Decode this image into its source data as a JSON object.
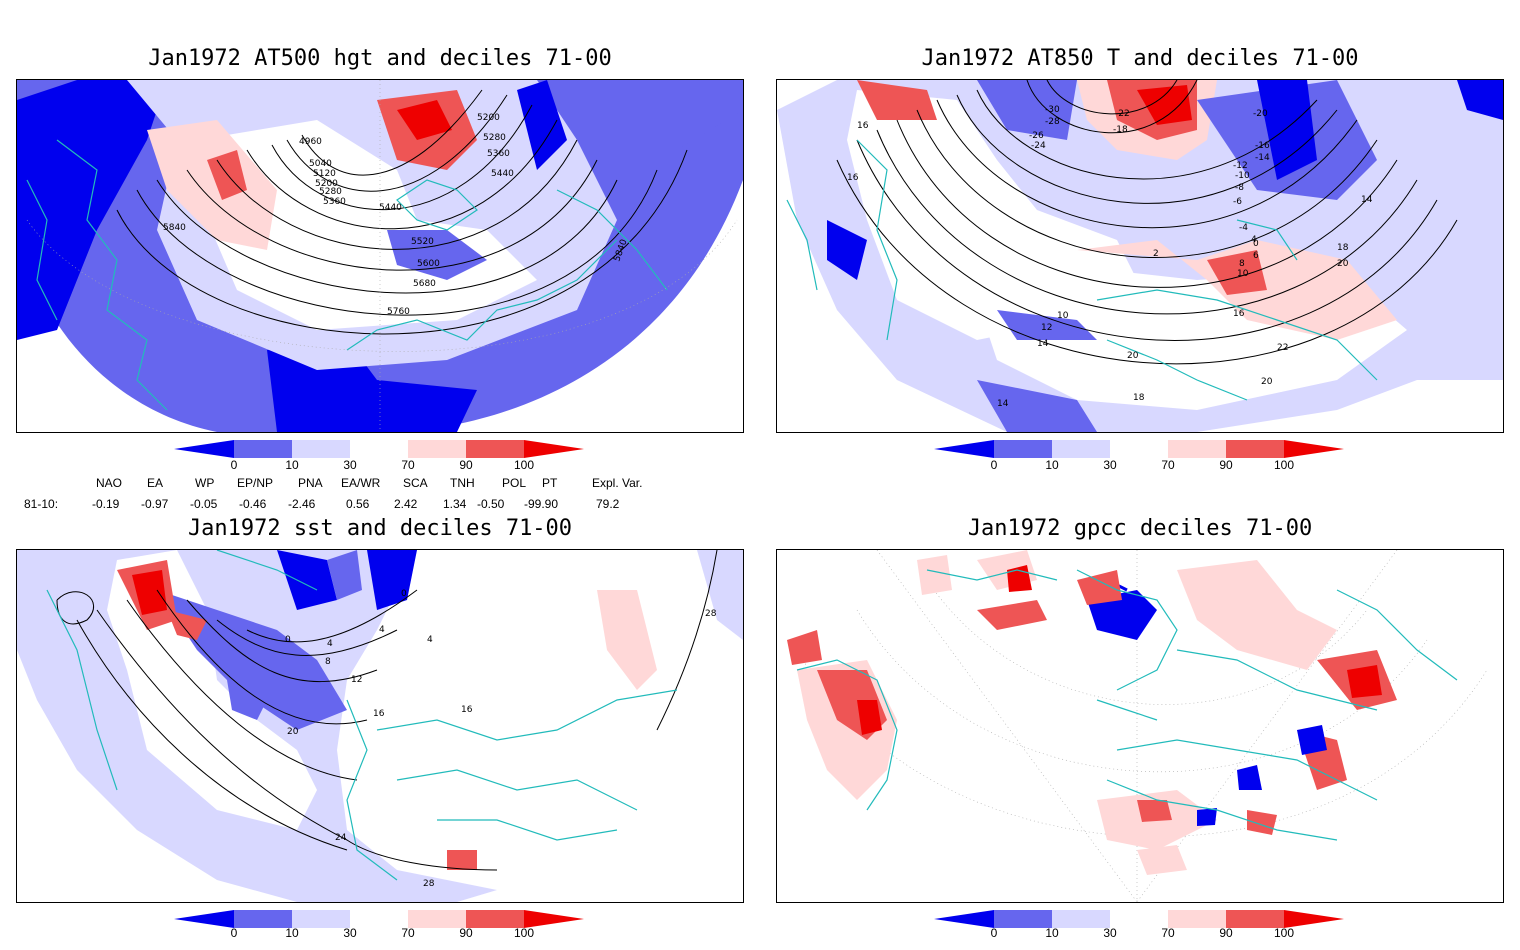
{
  "panels": [
    {
      "title": "Jan1972 AT500 hgt and deciles 71-00",
      "contour_labels": [
        "4960",
        "5040",
        "5120",
        "5200",
        "5280",
        "5360",
        "5200",
        "5280",
        "5360",
        "5440",
        "5440",
        "5520",
        "5600",
        "5680",
        "5760",
        "5840",
        "5840"
      ]
    },
    {
      "title": "Jan1972 AT850 T and deciles 71-00",
      "contour_labels": [
        "-30",
        "-28",
        "-26",
        "-24",
        "-22",
        "-20",
        "-18",
        "-16",
        "-14",
        "-12",
        "-10",
        "-8",
        "-6",
        "-4",
        "2",
        "0",
        "4",
        "6",
        "8",
        "10",
        "10",
        "12",
        "14",
        "14",
        "16",
        "16",
        "16",
        "18",
        "20",
        "20",
        "22",
        "20",
        "18",
        "14"
      ]
    },
    {
      "title": "Jan1972 sst and deciles 71-00",
      "contour_labels": [
        "0",
        "4",
        "8",
        "12",
        "16",
        "20",
        "24",
        "28",
        "28",
        "0",
        "4",
        "4",
        "16"
      ]
    },
    {
      "title": "Jan1972 gpcc deciles 71-00",
      "contour_labels": []
    }
  ],
  "colorbar": {
    "ticks": [
      "0",
      "10",
      "30",
      "70",
      "90",
      "100"
    ],
    "colors": [
      "#0000ee",
      "#6666ee",
      "#d8d8ff",
      "#ffffff",
      "#ffd8d8",
      "#ee5555",
      "#ee0000"
    ]
  },
  "indices": {
    "headers": [
      "NAO",
      "EA",
      "WP",
      "EP/NP",
      "PNA",
      "EA/WR",
      "SCA",
      "TNH",
      "POL",
      "PT",
      "Expl. Var."
    ],
    "row_label": "81-10:",
    "values": [
      "-0.19",
      "-0.97",
      "-0.05",
      "-0.46",
      "-2.46",
      "0.56",
      "2.42",
      "1.34",
      "-0.50",
      "-99.90",
      "79.2"
    ]
  }
}
